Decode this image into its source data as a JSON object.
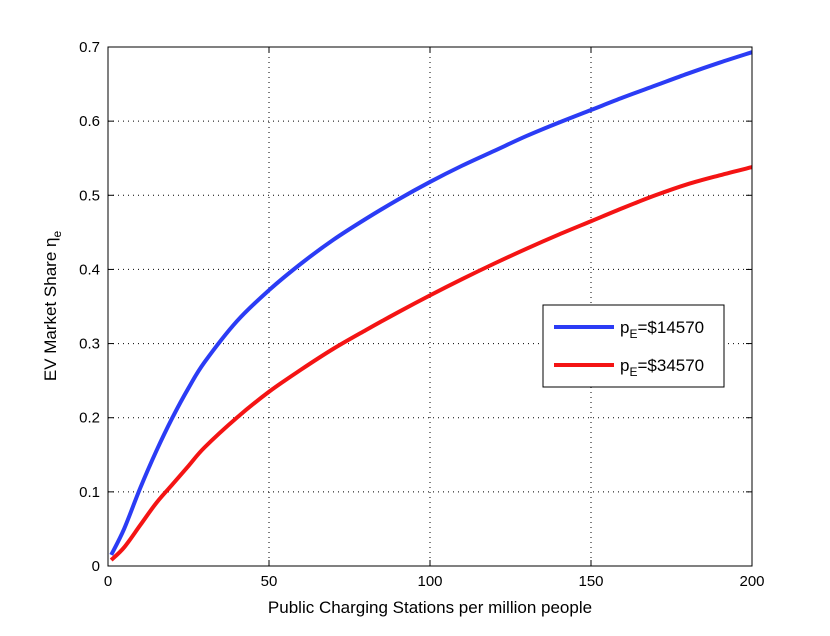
{
  "chart_data": {
    "type": "line",
    "xlabel": "Public Charging Stations per million people",
    "ylabel": {
      "main": "EV Market Share η",
      "subscript": "e"
    },
    "xlim": [
      0,
      200
    ],
    "ylim": [
      0,
      0.7
    ],
    "xticks": [
      0,
      50,
      100,
      150,
      200
    ],
    "yticks": [
      0,
      0.1,
      0.2,
      0.3,
      0.4,
      0.5,
      0.6,
      0.7
    ],
    "grid": true,
    "legend_position": "right",
    "series": [
      {
        "legend": {
          "prefix": "p",
          "subscript": "E",
          "suffix": "=$14570"
        },
        "color": "#2b3cf5",
        "x": [
          1,
          5,
          10,
          15,
          20,
          25,
          30,
          40,
          50,
          60,
          70,
          80,
          90,
          100,
          110,
          120,
          130,
          140,
          150,
          160,
          170,
          180,
          190,
          200
        ],
        "y": [
          0.015,
          0.05,
          0.105,
          0.155,
          0.2,
          0.24,
          0.275,
          0.33,
          0.372,
          0.408,
          0.44,
          0.468,
          0.494,
          0.518,
          0.54,
          0.56,
          0.58,
          0.598,
          0.615,
          0.632,
          0.648,
          0.664,
          0.679,
          0.693
        ]
      },
      {
        "legend": {
          "prefix": "p",
          "subscript": "E",
          "suffix": "=$34570"
        },
        "color": "#f41414",
        "x": [
          1,
          5,
          10,
          15,
          20,
          25,
          30,
          40,
          50,
          60,
          70,
          80,
          90,
          100,
          110,
          120,
          130,
          140,
          150,
          160,
          170,
          180,
          190,
          200
        ],
        "y": [
          0.008,
          0.025,
          0.055,
          0.085,
          0.11,
          0.135,
          0.16,
          0.2,
          0.235,
          0.265,
          0.293,
          0.318,
          0.342,
          0.365,
          0.387,
          0.408,
          0.428,
          0.447,
          0.465,
          0.483,
          0.5,
          0.515,
          0.527,
          0.538
        ]
      }
    ]
  }
}
